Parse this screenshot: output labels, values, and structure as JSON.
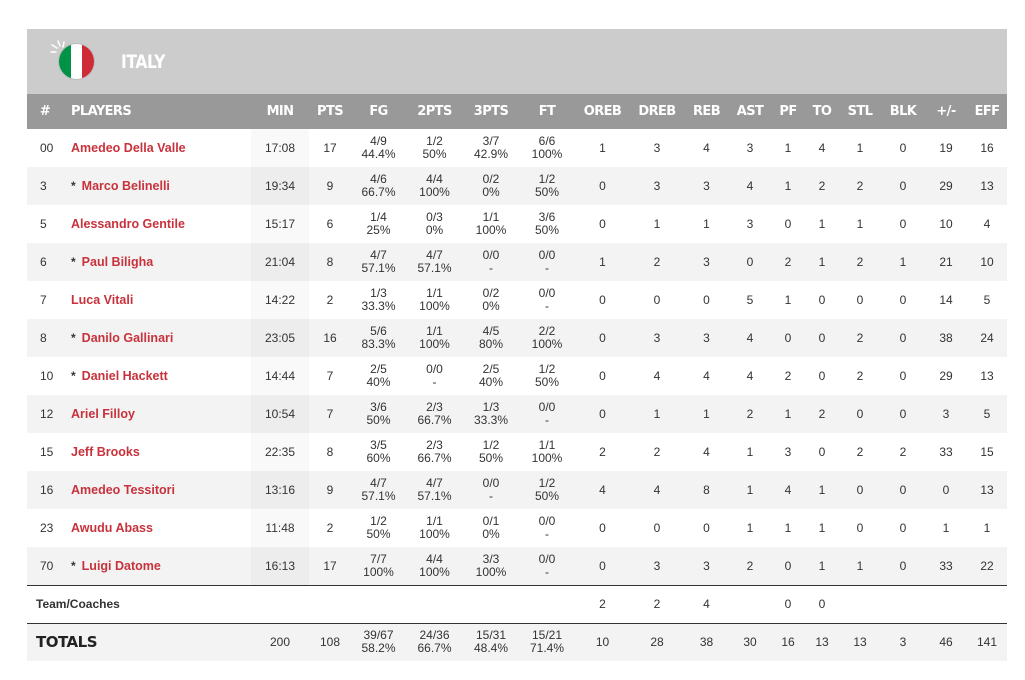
{
  "team": {
    "name": "ITALY",
    "flag_colors": [
      "#009246",
      "#ffffff",
      "#ce2b37"
    ]
  },
  "columns": [
    "#",
    "PLAYERS",
    "MIN",
    "PTS",
    "FG",
    "2PTS",
    "3PTS",
    "FT",
    "OREB",
    "DREB",
    "REB",
    "AST",
    "PF",
    "TO",
    "STL",
    "BLK",
    "+/-",
    "EFF"
  ],
  "players": [
    {
      "num": "00",
      "starter": false,
      "name": "Amedeo Della Valle",
      "min": "17:08",
      "pts": "17",
      "fg": [
        "4/9",
        "44.4%"
      ],
      "p2": [
        "1/2",
        "50%"
      ],
      "p3": [
        "3/7",
        "42.9%"
      ],
      "ft": [
        "6/6",
        "100%"
      ],
      "oreb": "1",
      "dreb": "3",
      "reb": "4",
      "ast": "3",
      "pf": "1",
      "to": "4",
      "stl": "1",
      "blk": "0",
      "pm": "19",
      "eff": "16"
    },
    {
      "num": "3",
      "starter": true,
      "name": "Marco Belinelli",
      "min": "19:34",
      "pts": "9",
      "fg": [
        "4/6",
        "66.7%"
      ],
      "p2": [
        "4/4",
        "100%"
      ],
      "p3": [
        "0/2",
        "0%"
      ],
      "ft": [
        "1/2",
        "50%"
      ],
      "oreb": "0",
      "dreb": "3",
      "reb": "3",
      "ast": "4",
      "pf": "1",
      "to": "2",
      "stl": "2",
      "blk": "0",
      "pm": "29",
      "eff": "13"
    },
    {
      "num": "5",
      "starter": false,
      "name": "Alessandro Gentile",
      "min": "15:17",
      "pts": "6",
      "fg": [
        "1/4",
        "25%"
      ],
      "p2": [
        "0/3",
        "0%"
      ],
      "p3": [
        "1/1",
        "100%"
      ],
      "ft": [
        "3/6",
        "50%"
      ],
      "oreb": "0",
      "dreb": "1",
      "reb": "1",
      "ast": "3",
      "pf": "0",
      "to": "1",
      "stl": "1",
      "blk": "0",
      "pm": "10",
      "eff": "4"
    },
    {
      "num": "6",
      "starter": true,
      "name": "Paul Biligha",
      "min": "21:04",
      "pts": "8",
      "fg": [
        "4/7",
        "57.1%"
      ],
      "p2": [
        "4/7",
        "57.1%"
      ],
      "p3": [
        "0/0",
        "-"
      ],
      "ft": [
        "0/0",
        "-"
      ],
      "oreb": "1",
      "dreb": "2",
      "reb": "3",
      "ast": "0",
      "pf": "2",
      "to": "1",
      "stl": "2",
      "blk": "1",
      "pm": "21",
      "eff": "10"
    },
    {
      "num": "7",
      "starter": false,
      "name": "Luca Vitali",
      "min": "14:22",
      "pts": "2",
      "fg": [
        "1/3",
        "33.3%"
      ],
      "p2": [
        "1/1",
        "100%"
      ],
      "p3": [
        "0/2",
        "0%"
      ],
      "ft": [
        "0/0",
        "-"
      ],
      "oreb": "0",
      "dreb": "0",
      "reb": "0",
      "ast": "5",
      "pf": "1",
      "to": "0",
      "stl": "0",
      "blk": "0",
      "pm": "14",
      "eff": "5"
    },
    {
      "num": "8",
      "starter": true,
      "name": "Danilo Gallinari",
      "min": "23:05",
      "pts": "16",
      "fg": [
        "5/6",
        "83.3%"
      ],
      "p2": [
        "1/1",
        "100%"
      ],
      "p3": [
        "4/5",
        "80%"
      ],
      "ft": [
        "2/2",
        "100%"
      ],
      "oreb": "0",
      "dreb": "3",
      "reb": "3",
      "ast": "4",
      "pf": "0",
      "to": "0",
      "stl": "2",
      "blk": "0",
      "pm": "38",
      "eff": "24"
    },
    {
      "num": "10",
      "starter": true,
      "name": "Daniel Hackett",
      "min": "14:44",
      "pts": "7",
      "fg": [
        "2/5",
        "40%"
      ],
      "p2": [
        "0/0",
        "-"
      ],
      "p3": [
        "2/5",
        "40%"
      ],
      "ft": [
        "1/2",
        "50%"
      ],
      "oreb": "0",
      "dreb": "4",
      "reb": "4",
      "ast": "4",
      "pf": "2",
      "to": "0",
      "stl": "2",
      "blk": "0",
      "pm": "29",
      "eff": "13"
    },
    {
      "num": "12",
      "starter": false,
      "name": "Ariel Filloy",
      "min": "10:54",
      "pts": "7",
      "fg": [
        "3/6",
        "50%"
      ],
      "p2": [
        "2/3",
        "66.7%"
      ],
      "p3": [
        "1/3",
        "33.3%"
      ],
      "ft": [
        "0/0",
        "-"
      ],
      "oreb": "0",
      "dreb": "1",
      "reb": "1",
      "ast": "2",
      "pf": "1",
      "to": "2",
      "stl": "0",
      "blk": "0",
      "pm": "3",
      "eff": "5"
    },
    {
      "num": "15",
      "starter": false,
      "name": "Jeff Brooks",
      "min": "22:35",
      "pts": "8",
      "fg": [
        "3/5",
        "60%"
      ],
      "p2": [
        "2/3",
        "66.7%"
      ],
      "p3": [
        "1/2",
        "50%"
      ],
      "ft": [
        "1/1",
        "100%"
      ],
      "oreb": "2",
      "dreb": "2",
      "reb": "4",
      "ast": "1",
      "pf": "3",
      "to": "0",
      "stl": "2",
      "blk": "2",
      "pm": "33",
      "eff": "15"
    },
    {
      "num": "16",
      "starter": false,
      "name": "Amedeo Tessitori",
      "min": "13:16",
      "pts": "9",
      "fg": [
        "4/7",
        "57.1%"
      ],
      "p2": [
        "4/7",
        "57.1%"
      ],
      "p3": [
        "0/0",
        "-"
      ],
      "ft": [
        "1/2",
        "50%"
      ],
      "oreb": "4",
      "dreb": "4",
      "reb": "8",
      "ast": "1",
      "pf": "4",
      "to": "1",
      "stl": "0",
      "blk": "0",
      "pm": "0",
      "eff": "13"
    },
    {
      "num": "23",
      "starter": false,
      "name": "Awudu Abass",
      "min": "11:48",
      "pts": "2",
      "fg": [
        "1/2",
        "50%"
      ],
      "p2": [
        "1/1",
        "100%"
      ],
      "p3": [
        "0/1",
        "0%"
      ],
      "ft": [
        "0/0",
        "-"
      ],
      "oreb": "0",
      "dreb": "0",
      "reb": "0",
      "ast": "1",
      "pf": "1",
      "to": "1",
      "stl": "0",
      "blk": "0",
      "pm": "1",
      "eff": "1"
    },
    {
      "num": "70",
      "starter": true,
      "name": "Luigi Datome",
      "min": "16:13",
      "pts": "17",
      "fg": [
        "7/7",
        "100%"
      ],
      "p2": [
        "4/4",
        "100%"
      ],
      "p3": [
        "3/3",
        "100%"
      ],
      "ft": [
        "0/0",
        "-"
      ],
      "oreb": "0",
      "dreb": "3",
      "reb": "3",
      "ast": "2",
      "pf": "0",
      "to": "1",
      "stl": "1",
      "blk": "0",
      "pm": "33",
      "eff": "22"
    }
  ],
  "team_coaches": {
    "label": "Team/Coaches",
    "oreb": "2",
    "dreb": "2",
    "reb": "4",
    "ast": "",
    "pf": "0",
    "to": "0"
  },
  "totals": {
    "label": "TOTALS",
    "min": "200",
    "pts": "108",
    "fg": [
      "39/67",
      "58.2%"
    ],
    "p2": [
      "24/36",
      "66.7%"
    ],
    "p3": [
      "15/31",
      "48.4%"
    ],
    "ft": [
      "15/21",
      "71.4%"
    ],
    "oreb": "10",
    "dreb": "28",
    "reb": "38",
    "ast": "30",
    "pf": "16",
    "to": "13",
    "stl": "13",
    "blk": "3",
    "pm": "46",
    "eff": "141"
  },
  "starter_marker": "*"
}
